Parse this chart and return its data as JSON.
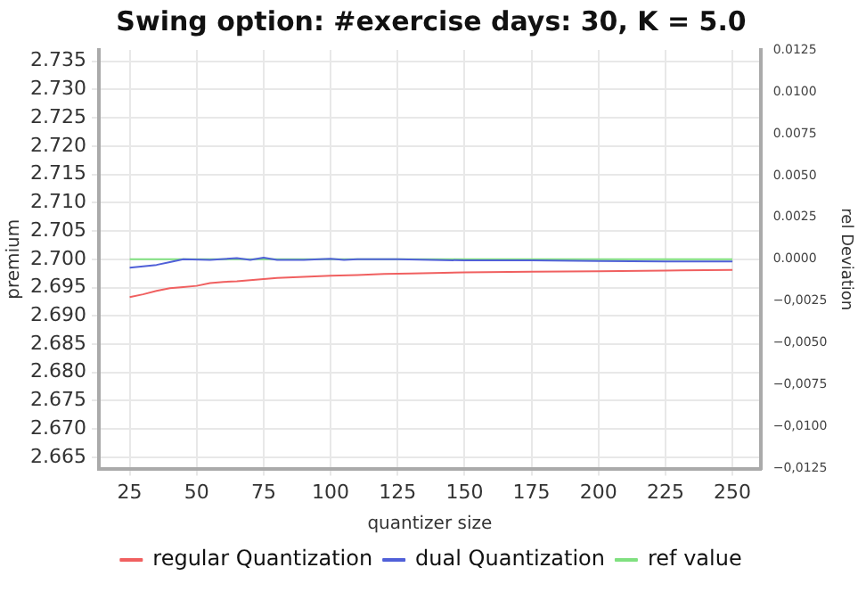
{
  "chart_data": {
    "type": "line",
    "title": "Swing option: #exercise days: 30, K = 5.0",
    "xlabel": "quantizer size",
    "ylabel": "premium",
    "y2label": "rel Deviation",
    "xlim": [
      13.5,
      260.5
    ],
    "xticks": [
      25,
      50,
      75,
      100,
      125,
      150,
      175,
      200,
      225,
      250
    ],
    "ylim": [
      2.663,
      2.737
    ],
    "yticks": [
      {
        "value": 2.665,
        "label": "2.665"
      },
      {
        "value": 2.67,
        "label": "2.670"
      },
      {
        "value": 2.675,
        "label": "2.675"
      },
      {
        "value": 2.68,
        "label": "2.680"
      },
      {
        "value": 2.685,
        "label": "2.685"
      },
      {
        "value": 2.69,
        "label": "2.690"
      },
      {
        "value": 2.695,
        "label": "2.695"
      },
      {
        "value": 2.7,
        "label": "2.700"
      },
      {
        "value": 2.705,
        "label": "2.705"
      },
      {
        "value": 2.71,
        "label": "2.710"
      },
      {
        "value": 2.715,
        "label": "2.715"
      },
      {
        "value": 2.72,
        "label": "2.720"
      },
      {
        "value": 2.725,
        "label": "2.725"
      },
      {
        "value": 2.73,
        "label": "2.730"
      },
      {
        "value": 2.735,
        "label": "2.735"
      }
    ],
    "y2lim": [
      -0.0125,
      0.0125
    ],
    "y2ticks": [
      {
        "value": -0.0125,
        "label": "−0,0125"
      },
      {
        "value": -0.01,
        "label": "−0,0100"
      },
      {
        "value": -0.0075,
        "label": "−0,0075"
      },
      {
        "value": -0.005,
        "label": "−0,0050"
      },
      {
        "value": -0.0025,
        "label": "−0,0025"
      },
      {
        "value": 0,
        "label": "0.0000"
      },
      {
        "value": 0.0025,
        "label": "0.0025"
      },
      {
        "value": 0.005,
        "label": "0.0050"
      },
      {
        "value": 0.0075,
        "label": "0.0075"
      },
      {
        "value": 0.01,
        "label": "0.0100"
      },
      {
        "value": 0.0125,
        "label": "0.0125"
      }
    ],
    "grid": true,
    "legend": "bottom",
    "marker": "none",
    "line_style": "solid",
    "series": [
      {
        "name": "regular Quantization",
        "color": "#f06060",
        "x": [
          25,
          30,
          35,
          40,
          45,
          50,
          55,
          60,
          65,
          70,
          75,
          80,
          90,
          100,
          110,
          120,
          130,
          150,
          175,
          200,
          225,
          250
        ],
        "values": [
          2.6933,
          2.6938,
          2.6944,
          2.6949,
          2.6951,
          2.6953,
          2.6958,
          2.696,
          2.6961,
          2.6963,
          2.6965,
          2.6967,
          2.6969,
          2.6971,
          2.6972,
          2.6974,
          2.6975,
          2.6977,
          2.6978,
          2.6979,
          2.698,
          2.6981
        ]
      },
      {
        "name": "dual Quantization",
        "color": "#5060d8",
        "x": [
          25,
          35,
          40,
          45,
          55,
          65,
          70,
          75,
          80,
          90,
          100,
          105,
          110,
          125,
          150,
          175,
          200,
          225,
          250
        ],
        "values": [
          2.6985,
          2.699,
          2.6995,
          2.7,
          2.6999,
          2.7002,
          2.6999,
          2.7003,
          2.6999,
          2.6999,
          2.7001,
          2.6999,
          2.7,
          2.7,
          2.6998,
          2.6998,
          2.6997,
          2.6996,
          2.6996
        ]
      },
      {
        "name": "ref value",
        "color": "#80e080",
        "x": [
          25,
          250
        ],
        "values": [
          2.7,
          2.7
        ]
      }
    ]
  }
}
